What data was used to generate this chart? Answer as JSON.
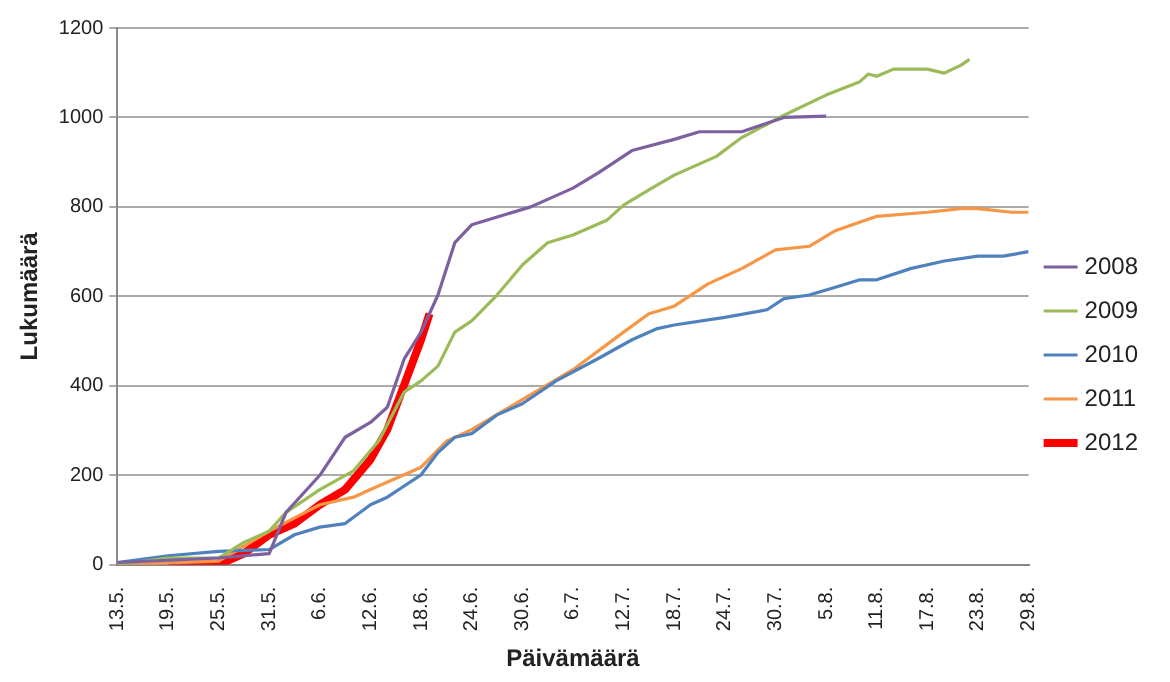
{
  "chart_data": {
    "type": "line",
    "xlabel": "Päivämäärä",
    "ylabel": "Lukumäärä",
    "xlim": [
      "--05-13",
      "--08-29"
    ],
    "xticks": [
      {
        "value": "--05-13",
        "label": "13.5."
      },
      {
        "value": "--05-19",
        "label": "19.5."
      },
      {
        "value": "--05-25",
        "label": "25.5."
      },
      {
        "value": "--05-31",
        "label": "31.5."
      },
      {
        "value": "--06-06",
        "label": "6.6."
      },
      {
        "value": "--06-12",
        "label": "12.6."
      },
      {
        "value": "--06-18",
        "label": "18.6."
      },
      {
        "value": "--06-24",
        "label": "24.6."
      },
      {
        "value": "--06-30",
        "label": "30.6."
      },
      {
        "value": "--07-06",
        "label": "6.7."
      },
      {
        "value": "--07-12",
        "label": "12.7."
      },
      {
        "value": "--07-18",
        "label": "18.7."
      },
      {
        "value": "--07-24",
        "label": "24.7."
      },
      {
        "value": "--07-30",
        "label": "30.7."
      },
      {
        "value": "--08-05",
        "label": "5.8."
      },
      {
        "value": "--08-11",
        "label": "11.8."
      },
      {
        "value": "--08-17",
        "label": "17.8."
      },
      {
        "value": "--08-23",
        "label": "23.8."
      },
      {
        "value": "--08-29",
        "label": "29.8."
      }
    ],
    "ylim": [
      0,
      1200
    ],
    "yticks": [
      0,
      200,
      400,
      600,
      800,
      1000,
      1200
    ],
    "grid": "y",
    "legend": "right",
    "marker": "none",
    "line_style": "solid",
    "series": [
      {
        "name": "2008",
        "color": "#7d60a0",
        "x": [
          "--05-13",
          "--05-25",
          "--05-31",
          "--06-02",
          "--06-06",
          "--06-09",
          "--06-12",
          "--06-14",
          "--06-16",
          "--06-18",
          "--06-20",
          "--06-22",
          "--06-24",
          "--06-28",
          "--07-01",
          "--07-06",
          "--07-09",
          "--07-13",
          "--07-18",
          "--07-21",
          "--07-26",
          "--07-31",
          "--08-05"
        ],
        "values": [
          5,
          15,
          25,
          117,
          200,
          285,
          318,
          352,
          460,
          520,
          603,
          720,
          760,
          783,
          800,
          842,
          876,
          926,
          951,
          968,
          968,
          1000,
          1003
        ]
      },
      {
        "name": "2009",
        "color": "#9bbb59",
        "x": [
          "--05-13",
          "--05-19",
          "--05-25",
          "--05-28",
          "--05-31",
          "--06-02",
          "--06-06",
          "--06-10",
          "--06-13",
          "--06-16",
          "--06-18",
          "--06-20",
          "--06-22",
          "--06-24",
          "--06-27",
          "--06-30",
          "--07-03",
          "--07-06",
          "--07-10",
          "--07-12",
          "--07-15",
          "--07-18",
          "--07-23",
          "--07-26",
          "--07-31",
          "--08-05",
          "--08-09",
          "--08-10",
          "--08-11",
          "--08-13",
          "--08-17",
          "--08-19",
          "--08-21",
          "--08-22"
        ],
        "values": [
          0,
          15,
          15,
          50,
          75,
          117,
          168,
          210,
          277,
          386,
          411,
          444,
          520,
          545,
          603,
          670,
          720,
          737,
          770,
          804,
          838,
          871,
          913,
          955,
          1005,
          1050,
          1080,
          1097,
          1092,
          1108,
          1108,
          1099,
          1117,
          1130
        ]
      },
      {
        "name": "2010",
        "color": "#4f81bd",
        "x": [
          "--05-13",
          "--05-19",
          "--05-25",
          "--05-31",
          "--06-03",
          "--06-06",
          "--06-09",
          "--06-12",
          "--06-14",
          "--06-16",
          "--06-18",
          "--06-20",
          "--06-22",
          "--06-24",
          "--06-27",
          "--06-30",
          "--07-04",
          "--07-09",
          "--07-13",
          "--07-16",
          "--07-18",
          "--07-24",
          "--07-29",
          "--07-31",
          "--08-03",
          "--08-06",
          "--08-09",
          "--08-11",
          "--08-15",
          "--08-19",
          "--08-23",
          "--08-26",
          "--08-29"
        ],
        "values": [
          5,
          20,
          30,
          34,
          67,
          84,
          92,
          134,
          151,
          176,
          201,
          251,
          285,
          293,
          335,
          360,
          411,
          461,
          503,
          528,
          536,
          553,
          570,
          595,
          603,
          620,
          637,
          637,
          662,
          679,
          690,
          690,
          700
        ]
      },
      {
        "name": "2011",
        "color": "#f79646",
        "x": [
          "--05-13",
          "--05-25",
          "--05-31",
          "--06-06",
          "--06-10",
          "--06-12",
          "--06-16",
          "--06-18",
          "--06-21",
          "--06-24",
          "--06-30",
          "--07-06",
          "--07-12",
          "--07-15",
          "--07-18",
          "--07-22",
          "--07-26",
          "--07-30",
          "--08-03",
          "--08-06",
          "--08-11",
          "--08-17",
          "--08-21",
          "--08-23",
          "--08-27",
          "--08-29"
        ],
        "values": [
          0,
          8,
          75,
          134,
          151,
          168,
          201,
          218,
          276,
          302,
          369,
          436,
          520,
          561,
          578,
          628,
          662,
          704,
          712,
          746,
          779,
          788,
          796,
          796,
          788,
          788
        ]
      },
      {
        "name": "2012",
        "color": "#ff0000",
        "x": [
          "--05-19",
          "--05-25",
          "--05-28",
          "--05-31",
          "--06-03",
          "--06-06",
          "--06-09",
          "--06-12",
          "--06-14",
          "--06-16",
          "--06-18",
          "--06-19"
        ],
        "values": [
          0,
          0,
          25,
          67,
          92,
          134,
          168,
          235,
          302,
          402,
          503,
          561
        ]
      }
    ]
  }
}
